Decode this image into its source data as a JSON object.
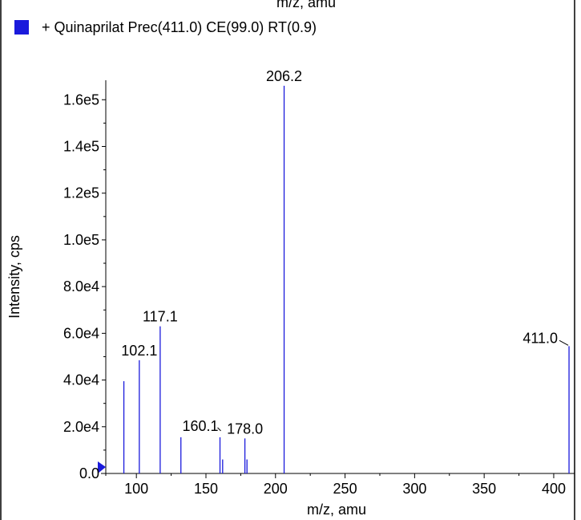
{
  "chart_data": {
    "type": "bar",
    "title": "+ Quinaprilat Prec(411.0) CE(99.0) RT(0.9)",
    "top_clipped_text": "m/z, amu",
    "xlabel": "m/z, amu",
    "ylabel": "Intensity, cps",
    "xlim": [
      78,
      415
    ],
    "ylim": [
      0,
      168000
    ],
    "x_ticks": [
      100,
      150,
      200,
      250,
      300,
      350,
      400
    ],
    "x_tick_labels": [
      "100",
      "150",
      "200",
      "250",
      "300",
      "350",
      "400"
    ],
    "y_ticks": [
      0,
      20000,
      40000,
      60000,
      80000,
      100000,
      120000,
      140000,
      160000
    ],
    "y_tick_labels": [
      "0.0",
      "2.0e4",
      "4.0e4",
      "6.0e4",
      "8.0e4",
      "1.0e5",
      "1.2e5",
      "1.4e5",
      "1.6e5"
    ],
    "series": [
      {
        "color": "#1a1adc",
        "peaks": [
          {
            "x": 91.0,
            "y": 39500
          },
          {
            "x": 102.1,
            "y": 48500,
            "label": "102.1"
          },
          {
            "x": 117.1,
            "y": 63000,
            "label": "117.1"
          },
          {
            "x": 132.0,
            "y": 15500
          },
          {
            "x": 160.1,
            "y": 15500,
            "label": "160.1"
          },
          {
            "x": 162.0,
            "y": 6000
          },
          {
            "x": 178.0,
            "y": 15000,
            "label": "178.0"
          },
          {
            "x": 179.5,
            "y": 6000
          },
          {
            "x": 206.2,
            "y": 166000,
            "label": "206.2"
          },
          {
            "x": 411.0,
            "y": 54500,
            "label": "411.0"
          }
        ]
      }
    ],
    "legend_color": "#1a1adc",
    "grid": false
  }
}
